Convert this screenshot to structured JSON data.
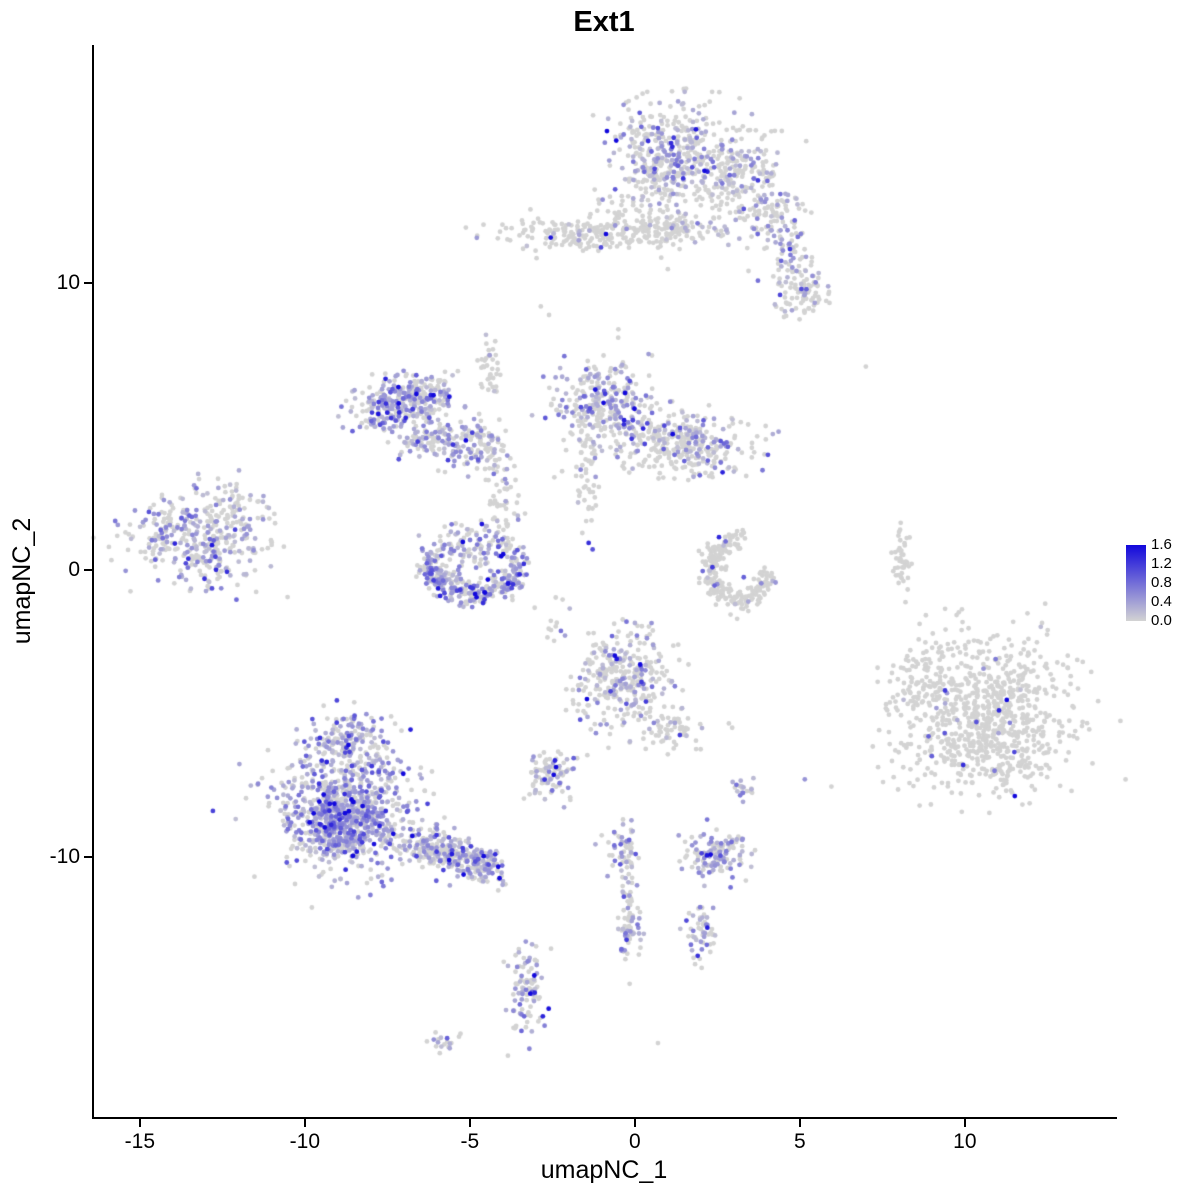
{
  "chart_data": {
    "type": "scatter",
    "title": "Ext1",
    "xlabel": "umapNC_1",
    "ylabel": "umapNC_2",
    "x_ticks": [
      -15,
      -10,
      -5,
      0,
      5,
      10
    ],
    "y_ticks": [
      10,
      0,
      -10
    ],
    "x_range": [
      -16.42,
      14.55
    ],
    "y_range": [
      -19.08,
      18.32
    ],
    "grid": false,
    "legend": {
      "position": "right",
      "ticks": [
        "1.6",
        "1.2",
        "0.8",
        "0.4",
        "0.0"
      ],
      "max": 1.6
    },
    "colors": {
      "low": "#D3D3D3",
      "high": "#1208DC"
    },
    "point_radius": 2.4,
    "clusters": [
      {
        "name": "top-main-left",
        "x": 0.9,
        "y": 14.6,
        "sx": 0.75,
        "sy": 0.9,
        "n": 320,
        "frac": 0.35,
        "imean": 0.6
      },
      {
        "name": "top-main-right",
        "x": 2.7,
        "y": 13.9,
        "sx": 0.85,
        "sy": 0.85,
        "n": 280,
        "frac": 0.25,
        "imean": 0.55
      },
      {
        "name": "top-below-sparse",
        "x": 0.1,
        "y": 12.8,
        "sx": 0.6,
        "sy": 0.5,
        "n": 45,
        "frac": 0.12,
        "imean": 0.5
      },
      {
        "name": "top-arm-1",
        "x": 4.15,
        "y": 12.4,
        "sx": 0.5,
        "sy": 0.55,
        "n": 90,
        "frac": 0.3,
        "imean": 0.55
      },
      {
        "name": "top-arm-2",
        "x": 4.7,
        "y": 11.2,
        "sx": 0.3,
        "sy": 0.5,
        "n": 50,
        "frac": 0.3,
        "imean": 0.55
      },
      {
        "name": "top-arm-3",
        "x": 5.1,
        "y": 9.8,
        "sx": 0.5,
        "sy": 0.5,
        "n": 90,
        "frac": 0.25,
        "imean": 0.5
      },
      {
        "name": "band",
        "x": -1.2,
        "y": 11.75,
        "sx": 1.5,
        "sy": 0.28,
        "n": 240,
        "frac": 0.04,
        "imean": 0.5
      },
      {
        "name": "band-right",
        "x": 1.2,
        "y": 12.0,
        "sx": 0.7,
        "sy": 0.3,
        "n": 70,
        "frac": 0.1,
        "imean": 0.5
      },
      {
        "name": "midleft-core",
        "x": -7.35,
        "y": 5.75,
        "sx": 0.62,
        "sy": 0.5,
        "n": 230,
        "frac": 0.6,
        "imean": 0.65
      },
      {
        "name": "midleft-right",
        "x": -6.3,
        "y": 6.05,
        "sx": 0.45,
        "sy": 0.4,
        "n": 110,
        "frac": 0.45,
        "imean": 0.6
      },
      {
        "name": "midleft-arm",
        "x": -5.8,
        "y": 4.5,
        "sx": 0.7,
        "sy": 0.4,
        "n": 140,
        "frac": 0.5,
        "imean": 0.6
      },
      {
        "name": "midleft-hook",
        "x": -4.55,
        "y": 4.4,
        "sx": 0.35,
        "sy": 0.45,
        "n": 70,
        "frac": 0.35,
        "imean": 0.55
      },
      {
        "name": "midleft-chain-up",
        "x": -4.45,
        "y": 7.0,
        "sx": 0.15,
        "sy": 0.6,
        "n": 35,
        "frac": 0.1,
        "imean": 0.4
      },
      {
        "name": "center-core",
        "x": -0.9,
        "y": 5.8,
        "sx": 0.75,
        "sy": 0.8,
        "n": 300,
        "frac": 0.45,
        "imean": 0.6
      },
      {
        "name": "center-arm",
        "x": 1.4,
        "y": 4.35,
        "sx": 1.05,
        "sy": 0.5,
        "n": 330,
        "frac": 0.25,
        "imean": 0.55
      },
      {
        "name": "center-chain-down",
        "x": -1.45,
        "y": 3.2,
        "sx": 0.2,
        "sy": 0.85,
        "n": 45,
        "frac": 0.15,
        "imean": 0.5
      },
      {
        "name": "bridge-chain",
        "x": -3.95,
        "y": 2.5,
        "sx": 0.3,
        "sy": 0.85,
        "n": 55,
        "frac": 0.15,
        "imean": 0.5
      },
      {
        "name": "horseshoe-left",
        "ring": true,
        "x": -4.9,
        "y": 0.15,
        "rx": 1.3,
        "ry": 0.95,
        "a0": 0,
        "a1": 360,
        "jit": 0.24,
        "n": 270,
        "frac": 0.5,
        "imean": 0.6
      },
      {
        "name": "horseshoe-left-bottom",
        "ring": true,
        "x": -4.9,
        "y": 0.1,
        "rx": 1.25,
        "ry": 0.9,
        "a0": 180,
        "a1": 360,
        "jit": 0.2,
        "n": 140,
        "frac": 0.65,
        "imean": 0.7
      },
      {
        "name": "horseshoe-left-fill",
        "x": -4.9,
        "y": 0.2,
        "sx": 0.55,
        "sy": 0.4,
        "n": 50,
        "frac": 0.4,
        "imean": 0.5
      },
      {
        "name": "far-left",
        "x": -13.1,
        "y": 1.1,
        "sx": 1.0,
        "sy": 0.82,
        "n": 380,
        "frac": 0.42,
        "imean": 0.55
      },
      {
        "name": "far-left-topright",
        "x": -12.2,
        "y": 2.3,
        "sx": 0.4,
        "sy": 0.3,
        "n": 30,
        "frac": 0.3,
        "imean": 0.5
      },
      {
        "name": "hook-right",
        "ring": true,
        "x": 3.2,
        "y": 0.0,
        "rx": 0.85,
        "ry": 1.05,
        "a0": 90,
        "a1": 360,
        "jit": 0.18,
        "n": 240,
        "frac": 0.05,
        "imean": 0.8
      },
      {
        "name": "sliver",
        "x": 8.1,
        "y": 0.2,
        "sx": 0.13,
        "sy": 0.75,
        "n": 45,
        "frac": 0.02,
        "imean": 0.5
      },
      {
        "name": "center-bottom",
        "x": -0.3,
        "y": -3.9,
        "sx": 0.72,
        "sy": 0.85,
        "n": 330,
        "frac": 0.3,
        "imean": 0.6
      },
      {
        "name": "center-bottom-arm",
        "x": 1.1,
        "y": -5.5,
        "sx": 0.45,
        "sy": 0.4,
        "n": 60,
        "frac": 0.2,
        "imean": 0.55
      },
      {
        "name": "right-big-top",
        "x": 10.9,
        "y": -4.6,
        "sx": 1.2,
        "sy": 1.1,
        "n": 450,
        "frac": 0.012,
        "imean": 0.9
      },
      {
        "name": "right-big-bottom",
        "x": 10.3,
        "y": -6.2,
        "sx": 1.3,
        "sy": 0.9,
        "n": 350,
        "frac": 0.012,
        "imean": 0.9
      },
      {
        "name": "right-big-left",
        "x": 9.0,
        "y": -4.0,
        "sx": 0.6,
        "sy": 0.9,
        "n": 120,
        "frac": 0.02,
        "imean": 0.8
      },
      {
        "name": "bottomleft-main",
        "x": -8.7,
        "y": -8.3,
        "sx": 1.05,
        "sy": 1.15,
        "n": 700,
        "frac": 0.55,
        "imean": 0.65
      },
      {
        "name": "bottomleft-core",
        "x": -9.1,
        "y": -8.9,
        "sx": 0.6,
        "sy": 0.55,
        "n": 300,
        "frac": 0.75,
        "imean": 0.7
      },
      {
        "name": "bottomleft-top",
        "x": -8.8,
        "y": -5.9,
        "sx": 0.6,
        "sy": 0.5,
        "n": 130,
        "frac": 0.5,
        "imean": 0.6
      },
      {
        "name": "tail-1",
        "x": -6.3,
        "y": -9.6,
        "sx": 0.45,
        "sy": 0.35,
        "n": 120,
        "frac": 0.55,
        "imean": 0.6
      },
      {
        "name": "tail-2",
        "x": -5.4,
        "y": -10.0,
        "sx": 0.45,
        "sy": 0.35,
        "n": 120,
        "frac": 0.55,
        "imean": 0.6
      },
      {
        "name": "tail-3",
        "x": -4.6,
        "y": -10.4,
        "sx": 0.4,
        "sy": 0.3,
        "n": 100,
        "frac": 0.55,
        "imean": 0.6
      },
      {
        "name": "small-left",
        "x": -2.5,
        "y": -7.1,
        "sx": 0.4,
        "sy": 0.4,
        "n": 90,
        "frac": 0.35,
        "imean": 0.55
      },
      {
        "name": "tiny-pair",
        "x": 3.35,
        "y": -7.6,
        "sx": 0.22,
        "sy": 0.18,
        "n": 20,
        "frac": 0.5,
        "imean": 0.6
      },
      {
        "name": "small-mid",
        "x": 2.4,
        "y": -9.9,
        "sx": 0.5,
        "sy": 0.4,
        "n": 130,
        "frac": 0.5,
        "imean": 0.6
      },
      {
        "name": "streak-1",
        "x": -0.3,
        "y": -9.8,
        "sx": 0.25,
        "sy": 0.45,
        "n": 55,
        "frac": 0.45,
        "imean": 0.6
      },
      {
        "name": "streak-2",
        "x": -0.2,
        "y": -11.3,
        "sx": 0.15,
        "sy": 0.6,
        "n": 35,
        "frac": 0.4,
        "imean": 0.55
      },
      {
        "name": "streak-3",
        "x": -0.15,
        "y": -12.6,
        "sx": 0.2,
        "sy": 0.5,
        "n": 45,
        "frac": 0.45,
        "imean": 0.6
      },
      {
        "name": "small-p",
        "x": 2.1,
        "y": -12.7,
        "sx": 0.25,
        "sy": 0.5,
        "n": 55,
        "frac": 0.5,
        "imean": 0.6
      },
      {
        "name": "small-q",
        "x": -3.3,
        "y": -14.8,
        "sx": 0.3,
        "sy": 0.85,
        "n": 100,
        "frac": 0.45,
        "imean": 0.65
      },
      {
        "name": "tiny-r",
        "x": -5.9,
        "y": -16.4,
        "sx": 0.3,
        "sy": 0.2,
        "n": 18,
        "frac": 0.25,
        "imean": 0.45
      },
      {
        "name": "tiny-below-horseshoe",
        "x": -2.4,
        "y": -1.8,
        "sx": 0.25,
        "sy": 0.45,
        "n": 12,
        "frac": 0.1,
        "imean": 0.4
      }
    ],
    "extra_points": [
      [
        -2.55,
        11.6,
        1.5
      ],
      [
        -2.85,
        9.2,
        0
      ],
      [
        -2.6,
        8.9,
        0
      ],
      [
        -0.5,
        8.4,
        0
      ],
      [
        7.0,
        7.1,
        0
      ],
      [
        0.8,
        10.9,
        0
      ],
      [
        1.0,
        10.5,
        0
      ],
      [
        -11.4,
        2.4,
        0
      ],
      [
        -11.15,
        2.2,
        0
      ],
      [
        -4.5,
        7.9,
        0
      ],
      [
        -4.4,
        7.5,
        0.4
      ],
      [
        -6.1,
        6.1,
        1.6
      ],
      [
        -5.62,
        6.05,
        1.5
      ],
      [
        -1.2,
        6.3,
        1.5
      ],
      [
        -0.9,
        6.15,
        1.2
      ],
      [
        0.3,
        4.4,
        1.1
      ],
      [
        2.6,
        4.5,
        1.0
      ],
      [
        2.82,
        4.3,
        0.9
      ],
      [
        -1.4,
        0.95,
        1.3
      ],
      [
        -1.28,
        0.72,
        1.0
      ],
      [
        2.55,
        1.15,
        1.35
      ],
      [
        2.75,
        1.0,
        0.8
      ],
      [
        2.35,
        0.1,
        1.2
      ],
      [
        3.3,
        -0.25,
        0.9
      ],
      [
        1.1,
        14.9,
        1.3
      ],
      [
        2.2,
        13.9,
        1.4
      ],
      [
        0.6,
        14.0,
        1.1
      ],
      [
        3.3,
        12.6,
        1.0
      ],
      [
        4.7,
        11.2,
        1.2
      ],
      [
        5.2,
        9.8,
        0.9
      ],
      [
        4.4,
        9.6,
        1.1
      ],
      [
        1.9,
        12.1,
        0.7
      ],
      [
        9.4,
        -4.2,
        1.2
      ],
      [
        10.35,
        -5.3,
        1.0
      ],
      [
        11.5,
        -6.35,
        1.1
      ],
      [
        9.95,
        -6.8,
        1.3
      ],
      [
        10.9,
        -7.0,
        0.7
      ],
      [
        8.9,
        -5.8,
        0.9
      ],
      [
        -4.1,
        -10.75,
        1.6
      ],
      [
        -0.55,
        -3.1,
        1.5
      ],
      [
        0.2,
        -3.9,
        1.2
      ],
      [
        -5.9,
        -0.9,
        1.4
      ],
      [
        -4.6,
        -1.15,
        1.3
      ],
      [
        -13.5,
        1.9,
        0.9
      ],
      [
        -0.25,
        -12.9,
        1.2
      ],
      [
        2.85,
        -5.35,
        0
      ],
      [
        2.95,
        -5.5,
        0
      ],
      [
        5.15,
        -7.3,
        0.5
      ],
      [
        0.7,
        -16.5,
        0
      ],
      [
        -0.8,
        -6.2,
        0
      ],
      [
        2.9,
        -1.55,
        0
      ],
      [
        3.1,
        -1.7,
        0
      ]
    ]
  }
}
